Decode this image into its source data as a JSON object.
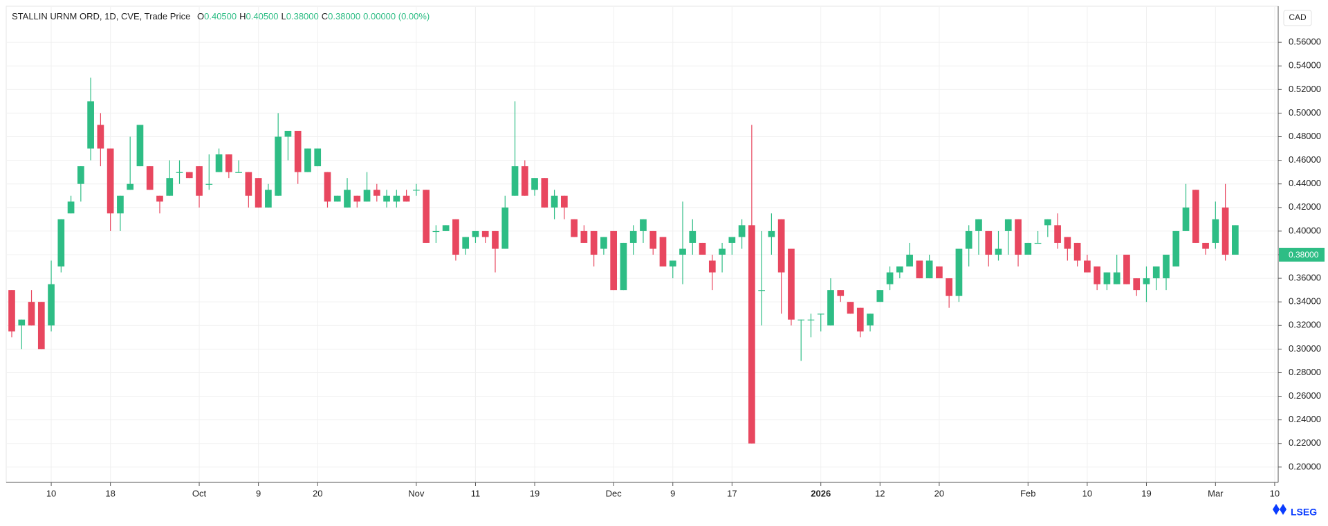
{
  "chart_data": {
    "type": "candlestick",
    "title": "STALLIN URNM ORD, 1D, CVE, Trade Price",
    "ohlc_readout": [
      {
        "label": "O",
        "value": "0.40500"
      },
      {
        "label": "H",
        "value": "0.40500"
      },
      {
        "label": "L",
        "value": "0.38000"
      },
      {
        "label": "C",
        "value": "0.38000"
      }
    ],
    "change": "0.00000 (0.00%)",
    "currency": "CAD",
    "brand": "LSEG",
    "up_color": "#2ebd85",
    "down_color": "#e8475f",
    "grid": true,
    "categories": [
      null,
      null,
      null,
      null,
      "10",
      null,
      null,
      null,
      null,
      null,
      "18",
      null,
      null,
      null,
      null,
      null,
      null,
      null,
      null,
      "Oct",
      null,
      null,
      null,
      null,
      null,
      "9",
      null,
      null,
      null,
      null,
      null,
      "20",
      null,
      null,
      null,
      null,
      null,
      null,
      null,
      null,
      null,
      "Nov",
      null,
      null,
      null,
      null,
      null,
      "11",
      null,
      null,
      null,
      null,
      null,
      "19",
      null,
      null,
      null,
      null,
      null,
      null,
      null,
      "Dec",
      null,
      null,
      null,
      null,
      null,
      "9",
      null,
      null,
      null,
      null,
      null,
      "17",
      null,
      null,
      null,
      null,
      null,
      null,
      null,
      null,
      "2026",
      null,
      null,
      null,
      null,
      null,
      "12",
      null,
      null,
      null,
      null,
      null,
      "20",
      null,
      null,
      null,
      null,
      null,
      null,
      null,
      null,
      "Feb",
      null,
      null,
      null,
      null,
      null,
      "10",
      null,
      null,
      null,
      null,
      null,
      "19",
      null,
      null,
      null,
      null,
      null,
      null,
      "Mar",
      null,
      null,
      null,
      null,
      null,
      "10"
    ],
    "open": [
      0.35,
      0.32,
      0.34,
      0.34,
      0.32,
      0.37,
      0.415,
      0.44,
      0.47,
      0.49,
      0.47,
      0.415,
      0.435,
      0.455,
      0.455,
      0.43,
      0.43,
      0.45,
      0.45,
      0.455,
      0.44,
      0.45,
      0.465,
      0.45,
      0.45,
      0.445,
      0.42,
      0.43,
      0.48,
      0.485,
      0.45,
      0.455,
      0.45,
      0.425,
      0.42,
      0.43,
      0.425,
      0.435,
      0.425,
      0.425,
      0.43,
      0.435,
      0.435,
      0.4,
      0.4,
      0.41,
      0.385,
      0.395,
      0.4,
      0.4,
      0.385,
      0.43,
      0.455,
      0.435,
      0.445,
      0.42,
      0.43,
      0.41,
      0.4,
      0.4,
      0.385,
      0.4,
      0.35,
      0.39,
      0.4,
      0.4,
      0.395,
      0.37,
      0.38,
      0.39,
      0.39,
      0.375,
      0.38,
      0.39,
      0.395,
      0.405,
      0.35,
      0.395,
      0.41,
      0.385,
      0.325,
      0.325,
      0.33,
      0.32,
      0.35,
      0.34,
      0.335,
      0.32,
      0.34,
      0.355,
      0.365,
      0.37,
      0.375,
      0.36,
      0.37,
      0.36,
      0.345,
      0.385,
      0.4,
      0.4,
      0.38,
      0.4,
      0.41,
      0.38,
      0.39,
      0.405,
      0.405,
      0.395,
      0.39,
      0.375,
      0.37,
      0.355,
      0.355,
      0.38,
      0.36,
      0.355,
      0.36,
      0.36,
      0.37,
      0.4,
      0.435,
      0.39,
      0.39,
      0.42,
      0.405,
      null,
      null,
      null,
      null
    ],
    "high": [
      0.35,
      0.325,
      0.35,
      0.34,
      0.375,
      0.41,
      0.43,
      0.455,
      0.53,
      0.5,
      0.47,
      0.43,
      0.48,
      0.49,
      0.455,
      0.43,
      0.46,
      0.46,
      0.45,
      0.455,
      0.465,
      0.47,
      0.465,
      0.46,
      0.45,
      0.445,
      0.44,
      0.5,
      0.485,
      0.485,
      0.47,
      0.47,
      0.45,
      0.43,
      0.445,
      0.43,
      0.45,
      0.44,
      0.435,
      0.435,
      0.435,
      0.44,
      0.435,
      0.405,
      0.405,
      0.41,
      0.395,
      0.4,
      0.4,
      0.4,
      0.43,
      0.51,
      0.46,
      0.445,
      0.445,
      0.435,
      0.43,
      0.41,
      0.405,
      0.4,
      0.395,
      0.4,
      0.39,
      0.405,
      0.41,
      0.4,
      0.395,
      0.375,
      0.425,
      0.41,
      0.39,
      0.38,
      0.39,
      0.395,
      0.41,
      0.49,
      0.4,
      0.415,
      0.41,
      0.385,
      0.325,
      0.33,
      0.33,
      0.36,
      0.35,
      0.34,
      0.335,
      0.33,
      0.35,
      0.37,
      0.37,
      0.39,
      0.375,
      0.38,
      0.37,
      0.36,
      0.385,
      0.405,
      0.41,
      0.4,
      0.4,
      0.41,
      0.41,
      0.39,
      0.4,
      0.41,
      0.415,
      0.395,
      0.39,
      0.38,
      0.37,
      0.365,
      0.38,
      0.38,
      0.36,
      0.37,
      0.37,
      0.38,
      0.4,
      0.44,
      0.435,
      0.39,
      0.425,
      0.44,
      0.405,
      null,
      null,
      null,
      null
    ],
    "low": [
      0.31,
      0.3,
      0.32,
      0.3,
      0.315,
      0.365,
      0.415,
      0.425,
      0.46,
      0.455,
      0.4,
      0.4,
      0.435,
      0.455,
      0.435,
      0.415,
      0.43,
      0.44,
      0.445,
      0.42,
      0.435,
      0.45,
      0.445,
      0.45,
      0.42,
      0.42,
      0.42,
      0.43,
      0.46,
      0.44,
      0.45,
      0.455,
      0.42,
      0.425,
      0.42,
      0.42,
      0.425,
      0.425,
      0.42,
      0.42,
      0.425,
      0.43,
      0.39,
      0.39,
      0.4,
      0.375,
      0.38,
      0.39,
      0.39,
      0.365,
      0.385,
      0.43,
      0.43,
      0.43,
      0.42,
      0.41,
      0.41,
      0.395,
      0.39,
      0.37,
      0.38,
      0.35,
      0.35,
      0.38,
      0.39,
      0.38,
      0.37,
      0.36,
      0.355,
      0.38,
      0.38,
      0.35,
      0.365,
      0.38,
      0.385,
      0.22,
      0.32,
      0.38,
      0.33,
      0.32,
      0.29,
      0.31,
      0.315,
      0.32,
      0.34,
      0.33,
      0.31,
      0.315,
      0.34,
      0.35,
      0.36,
      0.37,
      0.36,
      0.36,
      0.36,
      0.335,
      0.34,
      0.37,
      0.38,
      0.37,
      0.375,
      0.38,
      0.37,
      0.38,
      0.39,
      0.395,
      0.385,
      0.375,
      0.37,
      0.365,
      0.35,
      0.35,
      0.355,
      0.355,
      0.345,
      0.34,
      0.35,
      0.35,
      0.37,
      0.4,
      0.39,
      0.38,
      0.385,
      0.375,
      0.38,
      null,
      null,
      null,
      null
    ],
    "close": [
      0.315,
      0.325,
      0.32,
      0.3,
      0.355,
      0.41,
      0.425,
      0.455,
      0.51,
      0.47,
      0.415,
      0.43,
      0.44,
      0.49,
      0.435,
      0.425,
      0.445,
      0.45,
      0.445,
      0.43,
      0.44,
      0.465,
      0.45,
      0.45,
      0.43,
      0.42,
      0.435,
      0.48,
      0.485,
      0.45,
      0.47,
      0.47,
      0.425,
      0.43,
      0.435,
      0.425,
      0.435,
      0.43,
      0.43,
      0.43,
      0.425,
      0.435,
      0.39,
      0.4,
      0.405,
      0.38,
      0.395,
      0.4,
      0.395,
      0.385,
      0.42,
      0.455,
      0.43,
      0.445,
      0.42,
      0.43,
      0.42,
      0.395,
      0.39,
      0.38,
      0.395,
      0.35,
      0.39,
      0.4,
      0.41,
      0.385,
      0.37,
      0.375,
      0.385,
      0.4,
      0.38,
      0.365,
      0.385,
      0.395,
      0.405,
      0.22,
      0.35,
      0.4,
      0.365,
      0.325,
      0.325,
      0.325,
      0.33,
      0.35,
      0.345,
      0.33,
      0.315,
      0.33,
      0.35,
      0.365,
      0.37,
      0.38,
      0.36,
      0.375,
      0.36,
      0.345,
      0.385,
      0.4,
      0.41,
      0.38,
      0.385,
      0.41,
      0.38,
      0.39,
      0.39,
      0.41,
      0.39,
      0.385,
      0.375,
      0.365,
      0.355,
      0.365,
      0.365,
      0.355,
      0.35,
      0.36,
      0.37,
      0.38,
      0.4,
      0.42,
      0.39,
      0.385,
      0.41,
      0.38,
      0.38,
      null,
      null,
      null,
      null
    ],
    "last_price": {
      "value": 0.38,
      "label": "0.38000"
    },
    "ylim": [
      0.187,
      0.59
    ],
    "yticks": [
      {
        "value": 0.2,
        "label": "0.20000"
      },
      {
        "value": 0.22,
        "label": "0.22000"
      },
      {
        "value": 0.24,
        "label": "0.24000"
      },
      {
        "value": 0.26,
        "label": "0.26000"
      },
      {
        "value": 0.28,
        "label": "0.28000"
      },
      {
        "value": 0.3,
        "label": "0.30000"
      },
      {
        "value": 0.32,
        "label": "0.32000"
      },
      {
        "value": 0.34,
        "label": "0.34000"
      },
      {
        "value": 0.36,
        "label": "0.36000"
      },
      {
        "value": 0.38,
        "label": "0.38000"
      },
      {
        "value": 0.4,
        "label": "0.40000"
      },
      {
        "value": 0.42,
        "label": "0.42000"
      },
      {
        "value": 0.44,
        "label": "0.44000"
      },
      {
        "value": 0.46,
        "label": "0.46000"
      },
      {
        "value": 0.48,
        "label": "0.48000"
      },
      {
        "value": 0.5,
        "label": "0.50000"
      },
      {
        "value": 0.52,
        "label": "0.52000"
      },
      {
        "value": 0.54,
        "label": "0.54000"
      },
      {
        "value": 0.56,
        "label": "0.56000"
      }
    ]
  }
}
